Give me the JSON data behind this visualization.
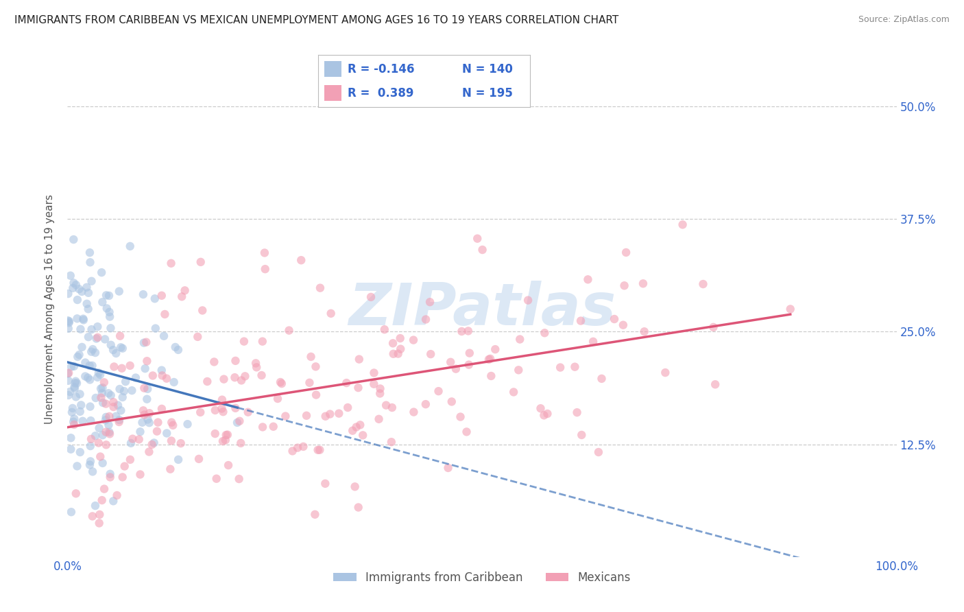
{
  "title": "IMMIGRANTS FROM CARIBBEAN VS MEXICAN UNEMPLOYMENT AMONG AGES 16 TO 19 YEARS CORRELATION CHART",
  "source": "Source: ZipAtlas.com",
  "ylabel": "Unemployment Among Ages 16 to 19 years",
  "xlim": [
    0,
    100
  ],
  "ylim": [
    0,
    55
  ],
  "yticks": [
    12.5,
    25.0,
    37.5,
    50.0
  ],
  "ytick_labels": [
    "12.5%",
    "25.0%",
    "37.5%",
    "50.0%"
  ],
  "xticks": [
    0,
    100
  ],
  "xtick_labels": [
    "0.0%",
    "100.0%"
  ],
  "watermark": "ZIPatlas",
  "legend_r1": "R = -0.146",
  "legend_n1": "N = 140",
  "legend_r2": "R =  0.389",
  "legend_n2": "N = 195",
  "legend_label1": "Immigrants from Caribbean",
  "legend_label2": "Mexicans",
  "caribbean_color": "#aac4e2",
  "mexican_color": "#f2a0b5",
  "caribbean_line_color": "#4477bb",
  "mexican_line_color": "#dd5577",
  "scatter_alpha": 0.6,
  "scatter_size": 80,
  "caribbean_R": -0.146,
  "caribbean_N": 140,
  "mexican_R": 0.389,
  "mexican_N": 195,
  "background_color": "#ffffff",
  "grid_color": "#cccccc",
  "title_color": "#222222",
  "axis_label_color": "#555555",
  "tick_color": "#3366cc",
  "watermark_color": "#dce8f5",
  "title_fontsize": 11,
  "axis_label_fontsize": 11,
  "tick_fontsize": 12,
  "legend_fontsize": 12
}
